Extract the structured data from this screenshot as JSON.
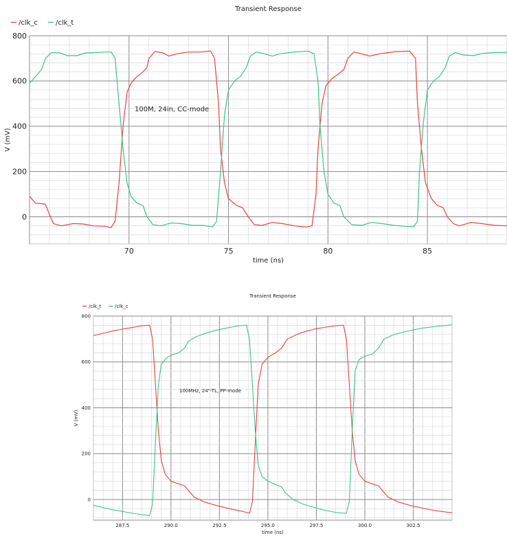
{
  "chart_data": [
    {
      "type": "line",
      "title": "Transient Response",
      "xlabel": "time (ns)",
      "ylabel": "V (mV)",
      "annotation": "100M, 24in, CC-mode",
      "xlim": [
        65.0,
        89.0
      ],
      "ylim": [
        -120,
        800
      ],
      "xticks": [
        70,
        75,
        80,
        85
      ],
      "yticks": [
        0,
        200,
        400,
        600,
        800
      ],
      "ytick_labels": [
        "0",
        "200",
        "400",
        "600",
        "800"
      ],
      "legend_position": "top-left",
      "grid": true,
      "series": [
        {
          "name": "/clk_c",
          "color": "#e8413c",
          "points": [
            [
              65.0,
              90
            ],
            [
              65.3,
              60
            ],
            [
              65.6,
              58
            ],
            [
              65.8,
              55
            ],
            [
              66.0,
              10
            ],
            [
              66.2,
              -30
            ],
            [
              66.6,
              -40
            ],
            [
              67.2,
              -30
            ],
            [
              67.7,
              -32
            ],
            [
              68.2,
              -40
            ],
            [
              68.8,
              -42
            ],
            [
              69.1,
              -48
            ],
            [
              69.3,
              -20
            ],
            [
              69.5,
              150
            ],
            [
              69.7,
              400
            ],
            [
              69.9,
              550
            ],
            [
              70.1,
              590
            ],
            [
              70.4,
              620
            ],
            [
              70.7,
              640
            ],
            [
              70.9,
              660
            ],
            [
              71.0,
              700
            ],
            [
              71.3,
              730
            ],
            [
              71.7,
              725
            ],
            [
              72.0,
              710
            ],
            [
              72.4,
              720
            ],
            [
              73.0,
              728
            ],
            [
              73.6,
              728
            ],
            [
              74.1,
              733
            ],
            [
              74.3,
              700
            ],
            [
              74.5,
              500
            ],
            [
              74.6,
              300
            ],
            [
              74.8,
              150
            ],
            [
              75.0,
              80
            ],
            [
              75.4,
              50
            ],
            [
              75.7,
              40
            ],
            [
              76.0,
              0
            ],
            [
              76.3,
              -35
            ],
            [
              76.7,
              -38
            ],
            [
              77.2,
              -25
            ],
            [
              77.7,
              -30
            ],
            [
              78.3,
              -40
            ],
            [
              78.9,
              -45
            ],
            [
              79.2,
              -40
            ],
            [
              79.4,
              100
            ],
            [
              79.5,
              300
            ],
            [
              79.7,
              500
            ],
            [
              79.9,
              580
            ],
            [
              80.2,
              610
            ],
            [
              80.5,
              630
            ],
            [
              80.8,
              650
            ],
            [
              81.0,
              700
            ],
            [
              81.3,
              728
            ],
            [
              81.7,
              720
            ],
            [
              82.1,
              710
            ],
            [
              82.6,
              720
            ],
            [
              83.4,
              730
            ],
            [
              84.1,
              732
            ],
            [
              84.4,
              700
            ],
            [
              84.5,
              500
            ],
            [
              84.7,
              300
            ],
            [
              84.9,
              150
            ],
            [
              85.2,
              80
            ],
            [
              85.5,
              50
            ],
            [
              85.8,
              40
            ],
            [
              86.0,
              0
            ],
            [
              86.3,
              -30
            ],
            [
              86.6,
              -40
            ],
            [
              87.2,
              -25
            ],
            [
              87.7,
              -30
            ],
            [
              88.4,
              -38
            ],
            [
              89.0,
              -40
            ]
          ]
        },
        {
          "name": "/clk_t",
          "color": "#3ac286",
          "points": [
            [
              65.0,
              590
            ],
            [
              65.3,
              620
            ],
            [
              65.6,
              650
            ],
            [
              65.8,
              700
            ],
            [
              66.1,
              725
            ],
            [
              66.5,
              725
            ],
            [
              66.9,
              712
            ],
            [
              67.4,
              712
            ],
            [
              67.8,
              724
            ],
            [
              68.4,
              726
            ],
            [
              68.9,
              728
            ],
            [
              69.1,
              728
            ],
            [
              69.3,
              700
            ],
            [
              69.5,
              500
            ],
            [
              69.7,
              300
            ],
            [
              69.9,
              150
            ],
            [
              70.1,
              90
            ],
            [
              70.4,
              60
            ],
            [
              70.7,
              50
            ],
            [
              70.9,
              0
            ],
            [
              71.2,
              -35
            ],
            [
              71.6,
              -40
            ],
            [
              72.1,
              -28
            ],
            [
              72.6,
              -30
            ],
            [
              73.2,
              -38
            ],
            [
              73.7,
              -38
            ],
            [
              74.0,
              -42
            ],
            [
              74.2,
              -45
            ],
            [
              74.4,
              -20
            ],
            [
              74.6,
              200
            ],
            [
              74.8,
              450
            ],
            [
              75.0,
              560
            ],
            [
              75.3,
              600
            ],
            [
              75.6,
              620
            ],
            [
              75.9,
              660
            ],
            [
              76.1,
              710
            ],
            [
              76.4,
              728
            ],
            [
              76.8,
              720
            ],
            [
              77.2,
              710
            ],
            [
              77.6,
              720
            ],
            [
              78.3,
              728
            ],
            [
              79.0,
              732
            ],
            [
              79.3,
              720
            ],
            [
              79.5,
              600
            ],
            [
              79.6,
              400
            ],
            [
              79.8,
              200
            ],
            [
              80.0,
              100
            ],
            [
              80.3,
              60
            ],
            [
              80.6,
              50
            ],
            [
              80.8,
              0
            ],
            [
              81.2,
              -35
            ],
            [
              81.7,
              -38
            ],
            [
              82.2,
              -25
            ],
            [
              82.7,
              -30
            ],
            [
              83.3,
              -38
            ],
            [
              83.9,
              -42
            ],
            [
              84.3,
              -44
            ],
            [
              84.5,
              -20
            ],
            [
              84.6,
              200
            ],
            [
              84.8,
              420
            ],
            [
              85.0,
              560
            ],
            [
              85.3,
              600
            ],
            [
              85.6,
              620
            ],
            [
              85.9,
              660
            ],
            [
              86.1,
              710
            ],
            [
              86.4,
              726
            ],
            [
              86.8,
              715
            ],
            [
              87.3,
              712
            ],
            [
              87.8,
              722
            ],
            [
              88.4,
              726
            ],
            [
              89.0,
              726
            ]
          ]
        }
      ]
    },
    {
      "type": "line",
      "title": "Transient Response",
      "xlabel": "time (ns)",
      "ylabel": "V (mV)",
      "annotation": "100MHz, 24\"-TL, PP-mode",
      "xlim": [
        286.0,
        304.5
      ],
      "ylim": [
        -90,
        800
      ],
      "xticks": [
        287.5,
        290.0,
        292.5,
        295.0,
        297.5,
        300.0,
        302.5
      ],
      "xtick_labels": [
        "287.5",
        "290.0",
        "292.5",
        "295.0",
        "297.5",
        "300.0",
        "302.5"
      ],
      "yticks": [
        0,
        200,
        400,
        600,
        800
      ],
      "ytick_labels": [
        "0",
        "200",
        "400",
        "600",
        "800"
      ],
      "legend_position": "top-left",
      "grid": true,
      "series": [
        {
          "name": "/clk_t",
          "color": "#e8413c",
          "points": [
            [
              286.0,
              715
            ],
            [
              286.5,
              725
            ],
            [
              287.0,
              735
            ],
            [
              287.5,
              743
            ],
            [
              288.0,
              750
            ],
            [
              288.5,
              758
            ],
            [
              288.9,
              760
            ],
            [
              289.05,
              700
            ],
            [
              289.2,
              500
            ],
            [
              289.35,
              300
            ],
            [
              289.5,
              170
            ],
            [
              289.7,
              110
            ],
            [
              290.0,
              80
            ],
            [
              290.4,
              68
            ],
            [
              290.7,
              60
            ],
            [
              290.9,
              40
            ],
            [
              291.2,
              10
            ],
            [
              291.7,
              -10
            ],
            [
              292.3,
              -25
            ],
            [
              293.0,
              -40
            ],
            [
              293.7,
              -52
            ],
            [
              294.05,
              -60
            ],
            [
              294.2,
              -10
            ],
            [
              294.35,
              250
            ],
            [
              294.5,
              500
            ],
            [
              294.7,
              590
            ],
            [
              295.0,
              620
            ],
            [
              295.4,
              640
            ],
            [
              295.7,
              660
            ],
            [
              296.0,
              700
            ],
            [
              296.5,
              720
            ],
            [
              297.0,
              735
            ],
            [
              297.5,
              745
            ],
            [
              298.0,
              752
            ],
            [
              298.5,
              758
            ],
            [
              298.9,
              760
            ],
            [
              299.05,
              700
            ],
            [
              299.2,
              500
            ],
            [
              299.35,
              300
            ],
            [
              299.5,
              170
            ],
            [
              299.7,
              110
            ],
            [
              300.0,
              80
            ],
            [
              300.4,
              68
            ],
            [
              300.7,
              60
            ],
            [
              300.9,
              40
            ],
            [
              301.2,
              10
            ],
            [
              301.7,
              -10
            ],
            [
              302.3,
              -25
            ],
            [
              303.0,
              -38
            ],
            [
              303.6,
              -48
            ],
            [
              304.5,
              -58
            ]
          ]
        },
        {
          "name": "/clk_c",
          "color": "#3ac286",
          "points": [
            [
              286.0,
              -25
            ],
            [
              286.5,
              -35
            ],
            [
              287.0,
              -45
            ],
            [
              287.5,
              -52
            ],
            [
              288.0,
              -60
            ],
            [
              288.5,
              -66
            ],
            [
              288.9,
              -70
            ],
            [
              289.05,
              -20
            ],
            [
              289.2,
              250
            ],
            [
              289.35,
              500
            ],
            [
              289.5,
              590
            ],
            [
              289.8,
              620
            ],
            [
              290.1,
              632
            ],
            [
              290.4,
              640
            ],
            [
              290.7,
              660
            ],
            [
              290.9,
              690
            ],
            [
              291.3,
              710
            ],
            [
              291.8,
              725
            ],
            [
              292.3,
              738
            ],
            [
              293.0,
              750
            ],
            [
              293.5,
              758
            ],
            [
              293.9,
              760
            ],
            [
              294.05,
              700
            ],
            [
              294.2,
              500
            ],
            [
              294.35,
              300
            ],
            [
              294.5,
              150
            ],
            [
              294.7,
              100
            ],
            [
              295.0,
              80
            ],
            [
              295.4,
              65
            ],
            [
              295.7,
              55
            ],
            [
              295.9,
              30
            ],
            [
              296.3,
              0
            ],
            [
              296.8,
              -20
            ],
            [
              297.4,
              -35
            ],
            [
              298.0,
              -48
            ],
            [
              298.6,
              -58
            ],
            [
              299.05,
              -60
            ],
            [
              299.2,
              -10
            ],
            [
              299.35,
              300
            ],
            [
              299.5,
              560
            ],
            [
              299.7,
              610
            ],
            [
              300.0,
              625
            ],
            [
              300.4,
              635
            ],
            [
              300.7,
              660
            ],
            [
              301.0,
              700
            ],
            [
              301.5,
              720
            ],
            [
              302.0,
              730
            ],
            [
              302.5,
              740
            ],
            [
              303.0,
              748
            ],
            [
              303.7,
              755
            ],
            [
              304.5,
              762
            ]
          ]
        }
      ]
    }
  ]
}
